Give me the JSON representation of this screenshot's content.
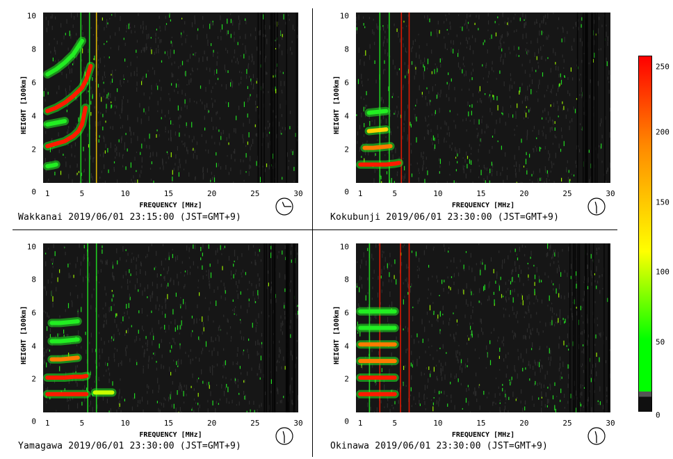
{
  "colorbar": {
    "ticks": [
      "250",
      "200",
      "150",
      "100",
      "50",
      "0"
    ],
    "tick_values": [
      250,
      200,
      150,
      100,
      50,
      0
    ],
    "range": [
      0,
      255
    ],
    "colors": [
      "#101010",
      "#555555",
      "#00ff00",
      "#ffff00",
      "#ff8800",
      "#ff0000"
    ]
  },
  "chart_data": [
    {
      "type": "heatmap",
      "station": "Wakkanai",
      "caption": "Wakkanai 2019/06/01 23:15:00 (JST=GMT+9)",
      "clock_time": "23:15",
      "xlabel": "FREQUENCY [MHz]",
      "ylabel": "HEIGHT [100km]",
      "xlim": [
        0.5,
        30
      ],
      "ylim": [
        0,
        10.2
      ],
      "xticks": [
        "1",
        "5",
        "10",
        "15",
        "20",
        "25",
        "30"
      ],
      "xtick_values": [
        1,
        5,
        10,
        15,
        20,
        25,
        30
      ],
      "yticks": [
        "0",
        "2",
        "4",
        "6",
        "8",
        "10"
      ],
      "ytick_values": [
        0,
        2,
        4,
        6,
        8,
        10
      ],
      "echo_traces": [
        {
          "x": [
            1.0,
            2.0,
            3.0,
            4.0,
            4.6,
            5.0,
            5.2,
            5.4
          ],
          "y": [
            2.2,
            2.35,
            2.5,
            2.8,
            3.1,
            3.5,
            4.0,
            4.5
          ],
          "level": 240
        },
        {
          "x": [
            1.0,
            2.0,
            3.0,
            4.0,
            5.0,
            5.5,
            6.0
          ],
          "y": [
            4.3,
            4.5,
            4.8,
            5.2,
            5.7,
            6.2,
            7.0
          ],
          "level": 220
        },
        {
          "x": [
            1.0,
            2.0,
            3.0,
            4.0,
            5.0
          ],
          "y": [
            6.5,
            6.8,
            7.2,
            7.7,
            8.5
          ],
          "level": 70
        },
        {
          "x": [
            1.0,
            1.6,
            2.0
          ],
          "y": [
            1.0,
            1.05,
            1.1
          ],
          "level": 70
        },
        {
          "x": [
            1.0,
            2.0,
            3.0
          ],
          "y": [
            3.5,
            3.6,
            3.7
          ],
          "level": 70
        }
      ],
      "vertical_lines": [
        {
          "x": 6.6,
          "level": 160
        },
        {
          "x": 5.8,
          "level": 60
        },
        {
          "x": 4.8,
          "level": 60
        }
      ]
    },
    {
      "type": "heatmap",
      "station": "Kokubunji",
      "caption": "Kokubunji 2019/06/01 23:30:00 (JST=GMT+9)",
      "clock_time": "23:30",
      "xlabel": "FREQUENCY [MHz]",
      "ylabel": "HEIGHT [100km]",
      "xlim": [
        0.5,
        30
      ],
      "ylim": [
        0,
        10.2
      ],
      "xticks": [
        "1",
        "5",
        "10",
        "15",
        "20",
        "25",
        "30"
      ],
      "xtick_values": [
        1,
        5,
        10,
        15,
        20,
        25,
        30
      ],
      "yticks": [
        "0",
        "2",
        "4",
        "6",
        "8",
        "10"
      ],
      "ytick_values": [
        0,
        2,
        4,
        6,
        8,
        10
      ],
      "echo_traces": [
        {
          "x": [
            1.0,
            2.0,
            3.0,
            4.0,
            5.0,
            5.5
          ],
          "y": [
            1.1,
            1.1,
            1.1,
            1.1,
            1.15,
            1.2
          ],
          "level": 240
        },
        {
          "x": [
            1.5,
            2.5,
            3.5,
            4.5
          ],
          "y": [
            2.1,
            2.1,
            2.15,
            2.2
          ],
          "level": 200
        },
        {
          "x": [
            2.0,
            3.0,
            4.0
          ],
          "y": [
            3.1,
            3.15,
            3.2
          ],
          "level": 170
        },
        {
          "x": [
            2.0,
            3.0,
            4.0
          ],
          "y": [
            4.2,
            4.25,
            4.3
          ],
          "level": 70
        }
      ],
      "vertical_lines": [
        {
          "x": 5.7,
          "level": 240
        },
        {
          "x": 6.6,
          "level": 220
        },
        {
          "x": 3.2,
          "level": 60
        },
        {
          "x": 4.3,
          "level": 60
        }
      ]
    },
    {
      "type": "heatmap",
      "station": "Yamagawa",
      "caption": "Yamagawa 2019/06/01 23:30:00 (JST=GMT+9)",
      "clock_time": "23:30",
      "xlabel": "FREQUENCY [MHz]",
      "ylabel": "HEIGHT [100km]",
      "xlim": [
        0.5,
        30
      ],
      "ylim": [
        0,
        10.2
      ],
      "xticks": [
        "1",
        "5",
        "10",
        "15",
        "20",
        "25",
        "30"
      ],
      "xtick_values": [
        1,
        5,
        10,
        15,
        20,
        25,
        30
      ],
      "yticks": [
        "0",
        "2",
        "4",
        "6",
        "8",
        "10"
      ],
      "ytick_values": [
        0,
        2,
        4,
        6,
        8,
        10
      ],
      "echo_traces": [
        {
          "x": [
            1.0,
            2.0,
            3.0,
            4.0,
            5.0,
            5.5
          ],
          "y": [
            1.1,
            1.1,
            1.1,
            1.1,
            1.1,
            1.1
          ],
          "level": 240
        },
        {
          "x": [
            1.0,
            2.0,
            3.0,
            4.0,
            5.0,
            5.5
          ],
          "y": [
            2.1,
            2.1,
            2.1,
            2.15,
            2.15,
            2.2
          ],
          "level": 220
        },
        {
          "x": [
            1.5,
            2.5,
            3.5,
            4.5
          ],
          "y": [
            3.2,
            3.2,
            3.25,
            3.3
          ],
          "level": 200
        },
        {
          "x": [
            1.5,
            2.5,
            3.5,
            4.5
          ],
          "y": [
            4.3,
            4.3,
            4.35,
            4.4
          ],
          "level": 90
        },
        {
          "x": [
            1.5,
            2.5,
            3.5,
            4.5
          ],
          "y": [
            5.4,
            5.4,
            5.45,
            5.5
          ],
          "level": 70
        },
        {
          "x": [
            6.5,
            7.5,
            8.5
          ],
          "y": [
            1.2,
            1.2,
            1.2
          ],
          "level": 110
        }
      ],
      "vertical_lines": [
        {
          "x": 5.6,
          "level": 60
        },
        {
          "x": 6.6,
          "level": 60
        }
      ]
    },
    {
      "type": "heatmap",
      "station": "Okinawa",
      "caption": "Okinawa 2019/06/01 23:30:00 (JST=GMT+9)",
      "clock_time": "23:30",
      "xlabel": "FREQUENCY [MHz]",
      "ylabel": "HEIGHT [100km]",
      "xlim": [
        0.5,
        30
      ],
      "ylim": [
        0,
        10.2
      ],
      "xticks": [
        "1",
        "5",
        "10",
        "15",
        "20",
        "25",
        "30"
      ],
      "xtick_values": [
        1,
        5,
        10,
        15,
        20,
        25,
        30
      ],
      "yticks": [
        "0",
        "2",
        "4",
        "6",
        "8",
        "10"
      ],
      "ytick_values": [
        0,
        2,
        4,
        6,
        8,
        10
      ],
      "echo_traces": [
        {
          "x": [
            1.0,
            2.0,
            3.0,
            4.0,
            5.0
          ],
          "y": [
            1.1,
            1.1,
            1.1,
            1.1,
            1.1
          ],
          "level": 240
        },
        {
          "x": [
            1.0,
            2.0,
            3.0,
            4.0,
            5.0
          ],
          "y": [
            2.1,
            2.1,
            2.1,
            2.1,
            2.1
          ],
          "level": 230
        },
        {
          "x": [
            1.0,
            2.0,
            3.0,
            4.0,
            5.0
          ],
          "y": [
            3.1,
            3.1,
            3.1,
            3.1,
            3.1
          ],
          "level": 210
        },
        {
          "x": [
            1.0,
            2.0,
            3.0,
            4.0,
            5.0
          ],
          "y": [
            4.1,
            4.1,
            4.1,
            4.1,
            4.1
          ],
          "level": 180
        },
        {
          "x": [
            1.0,
            2.0,
            3.0,
            4.0,
            5.0
          ],
          "y": [
            5.1,
            5.1,
            5.1,
            5.1,
            5.1
          ],
          "level": 90
        },
        {
          "x": [
            1.0,
            2.0,
            3.0,
            4.0,
            5.0
          ],
          "y": [
            6.1,
            6.1,
            6.1,
            6.1,
            6.1
          ],
          "level": 70
        }
      ],
      "vertical_lines": [
        {
          "x": 3.2,
          "level": 230
        },
        {
          "x": 5.6,
          "level": 230
        },
        {
          "x": 6.6,
          "level": 240
        },
        {
          "x": 2.0,
          "level": 60
        }
      ]
    }
  ]
}
